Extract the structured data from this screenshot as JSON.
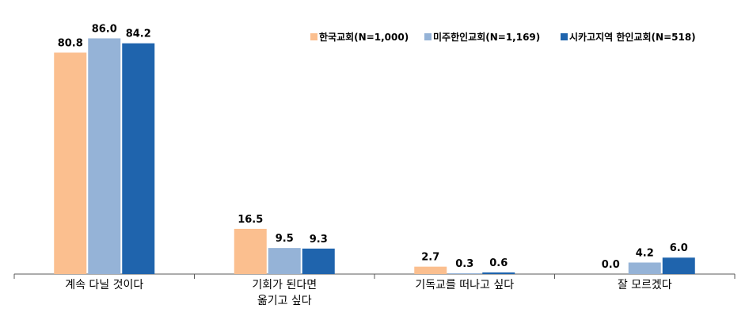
{
  "chart_data": {
    "type": "bar",
    "title": "",
    "xlabel": "",
    "ylabel": "",
    "ylim": [
      0,
      100
    ],
    "grid": false,
    "legend_position": "top-right",
    "categories": [
      [
        "계속 다닐 것이다"
      ],
      [
        "기회가 된다면",
        "옮기고 싶다"
      ],
      [
        "기독교를 떠나고 싶다"
      ],
      [
        "잘 모르겠다"
      ]
    ],
    "series": [
      {
        "name": "한국교회(N=1,000)",
        "color": "#FBBF8F",
        "values": [
          80.8,
          16.5,
          2.7,
          0.0
        ],
        "labels": [
          "80.8",
          "16.5",
          "2.7",
          "0.0"
        ]
      },
      {
        "name": "미주한인교회(N=1,169)",
        "color": "#95B3D7",
        "values": [
          86.0,
          9.5,
          0.3,
          4.2
        ],
        "labels": [
          "86.0",
          "9.5",
          "0.3",
          "4.2"
        ]
      },
      {
        "name": "시카고지역 한인교회(N=518)",
        "color": "#1F64AD",
        "values": [
          84.2,
          9.3,
          0.6,
          6.0
        ],
        "labels": [
          "84.2",
          "9.3",
          "0.6",
          "6.0"
        ]
      }
    ]
  }
}
